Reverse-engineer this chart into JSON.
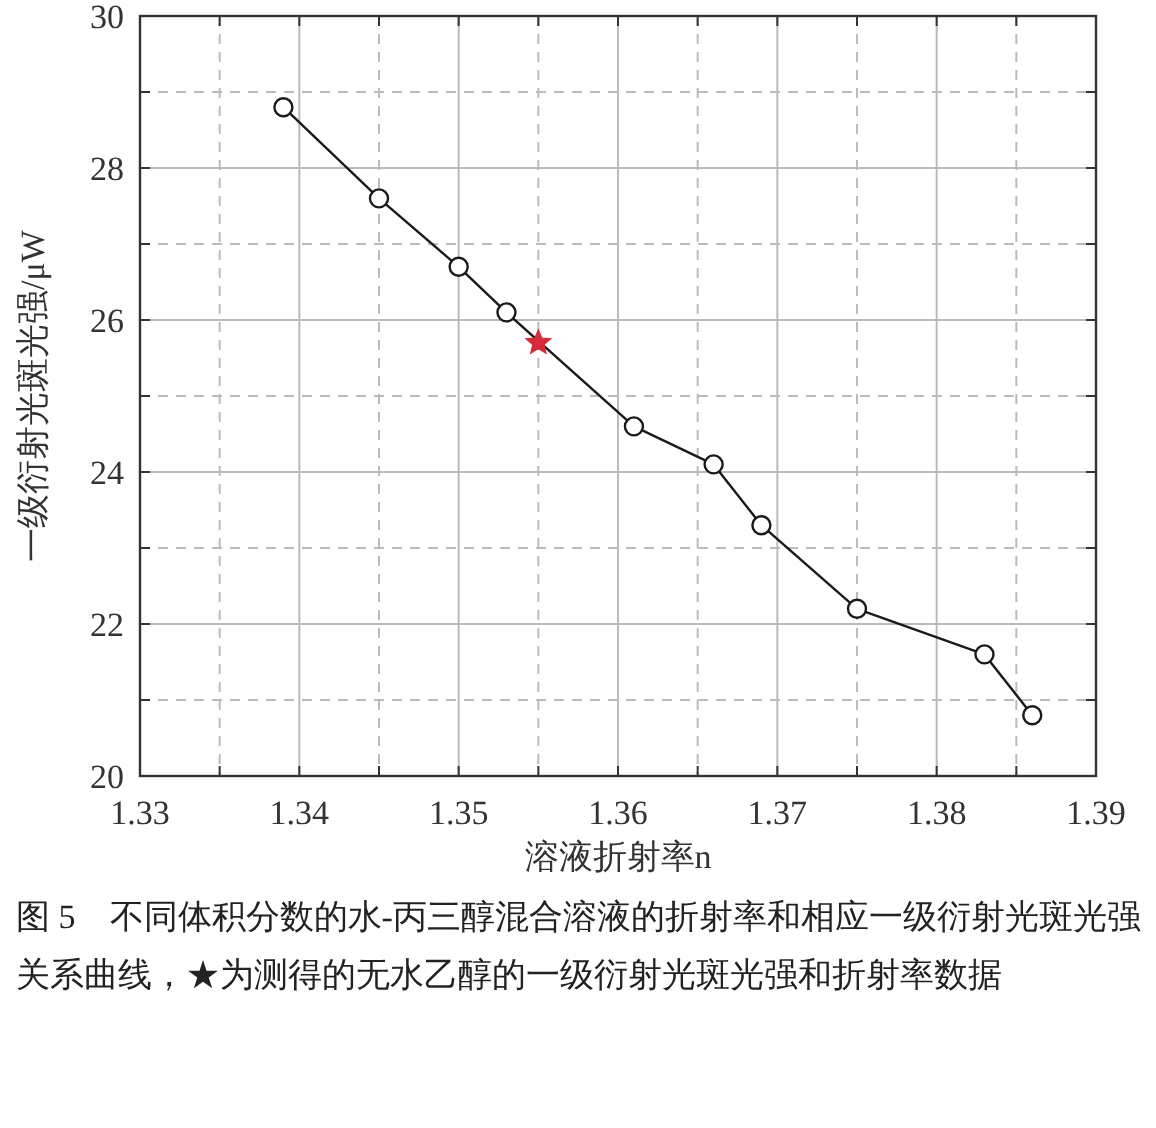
{
  "chart_data": {
    "type": "line",
    "xlabel": "溶液折射率n",
    "ylabel": "一级衍射光斑光强/μW",
    "xlim": [
      1.33,
      1.39
    ],
    "ylim": [
      20,
      30
    ],
    "xticks": [
      1.33,
      {
        "value": 1.335,
        "label": null
      },
      1.34,
      {
        "value": 1.345,
        "label": null
      },
      1.35,
      {
        "value": 1.355,
        "label": null
      },
      1.36,
      {
        "value": 1.365,
        "label": null
      },
      1.37,
      {
        "value": 1.375,
        "label": null
      },
      1.38,
      {
        "value": 1.385,
        "label": null
      },
      1.39
    ],
    "yticks": [
      20,
      {
        "value": 21,
        "label": null
      },
      22,
      {
        "value": 23,
        "label": null
      },
      24,
      {
        "value": 25,
        "label": null
      },
      26,
      {
        "value": 27,
        "label": null
      },
      28,
      {
        "value": 29,
        "label": null
      },
      30
    ],
    "grid": true,
    "series": [
      {
        "color": "#1a1a1a",
        "marker": "circle",
        "line_style": "solid",
        "x": [
          1.339,
          1.345,
          1.35,
          1.353,
          1.361,
          1.366,
          1.369,
          1.375,
          1.383,
          1.386
        ],
        "values": [
          28.8,
          27.6,
          26.7,
          26.1,
          24.6,
          24.1,
          23.3,
          22.2,
          21.6,
          20.8
        ]
      },
      {
        "type": "scatter",
        "color": "#d62b3a",
        "marker": "star",
        "x": [
          1.355
        ],
        "values": [
          25.7
        ]
      }
    ],
    "annotations": [
      "图 5　不同体积分数的水-丙三醇混合溶液的折射率和相应一级衍射光斑光强关系曲线，★为测得的无水乙醇的一级衍射光斑光强和折射率数据"
    ]
  }
}
